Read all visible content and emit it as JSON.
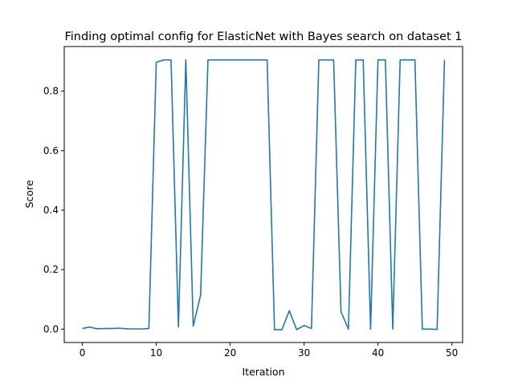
{
  "chart_data": {
    "type": "line",
    "title": "Finding optimal config for ElasticNet with Bayes search on dataset 1",
    "xlabel": "Iteration",
    "ylabel": "Score",
    "xlim": [
      -2.45,
      51.45
    ],
    "ylim": [
      -0.045,
      0.95
    ],
    "x_ticks": [
      0,
      10,
      20,
      30,
      40,
      50
    ],
    "y_ticks": [
      0.0,
      0.2,
      0.4,
      0.6,
      0.8
    ],
    "y_tick_labels": [
      "0.0",
      "0.2",
      "0.4",
      "0.6",
      "0.8"
    ],
    "grid": false,
    "line_color": "#1f77b4",
    "series": [
      {
        "x": [
          0,
          1,
          2,
          3,
          4,
          5,
          6,
          7,
          8,
          9,
          10,
          11,
          12,
          13,
          14,
          15,
          16,
          17,
          18,
          19,
          20,
          21,
          22,
          23,
          24,
          25,
          26,
          27,
          28,
          29,
          30,
          31,
          32,
          33,
          34,
          35,
          36,
          37,
          38,
          39,
          40,
          41,
          42,
          43,
          44,
          45,
          46,
          47,
          48,
          49
        ],
        "values": [
          0.002,
          0.007,
          0.001,
          0.002,
          0.002,
          0.003,
          0.001,
          0.0005,
          0.0005,
          0.002,
          0.897,
          0.905,
          0.905,
          0.007,
          0.905,
          0.01,
          0.115,
          0.905,
          0.905,
          0.905,
          0.905,
          0.905,
          0.905,
          0.905,
          0.905,
          0.905,
          -0.002,
          -0.002,
          0.062,
          -0.002,
          0.012,
          0.002,
          0.905,
          0.905,
          0.905,
          0.058,
          0.0,
          0.905,
          0.905,
          0.0,
          0.905,
          0.905,
          0.0,
          0.905,
          0.905,
          0.905,
          0.0,
          0.0,
          -0.001,
          0.905
        ]
      }
    ]
  }
}
